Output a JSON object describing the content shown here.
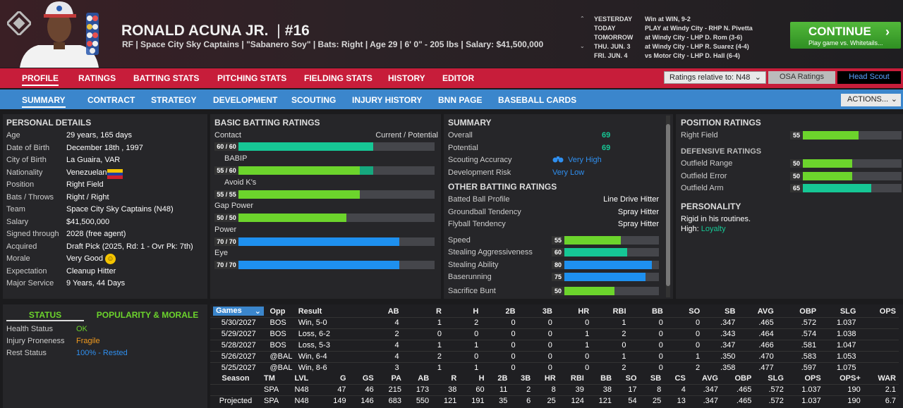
{
  "player": {
    "name": "RONALD ACUNA JR.",
    "sep": "|",
    "number": "#16",
    "info": "RF | Space City Sky Captains | \"Sabanero Soy\" | Bats: Right | Age 29 | 6' 0\" - 205 lbs | Salary: $41,500,000"
  },
  "schedule": [
    {
      "day": "YESTERDAY",
      "game": "Win at WIN, 9-2"
    },
    {
      "day": "TODAY",
      "game": "PLAY at Windy City - RHP N. Pivetta"
    },
    {
      "day": "TOMORROW",
      "game": "at Windy City - LHP D. Rom (3-6)"
    },
    {
      "day": "THU. JUN. 3",
      "game": "at Windy City - LHP R. Suarez (4-4)"
    },
    {
      "day": "FRI. JUN. 4",
      "game": "vs Motor City - LHP D. Hall (6-4)"
    }
  ],
  "continue": {
    "label": "CONTINUE",
    "sub": "Play game vs. Whitetails...",
    "chev": "›"
  },
  "nav1": [
    "PROFILE",
    "RATINGS",
    "BATTING STATS",
    "PITCHING STATS",
    "FIELDING STATS",
    "HISTORY",
    "EDITOR"
  ],
  "ratings_rel": "Ratings relative to: N48",
  "osa": "OSA Ratings",
  "head_scout": "Head Scout",
  "nav2": [
    "SUMMARY",
    "CONTRACT",
    "STRATEGY",
    "DEVELOPMENT",
    "SCOUTING",
    "INJURY HISTORY",
    "BNN PAGE",
    "BASEBALL CARDS"
  ],
  "actions": "ACTIONS...",
  "personal": {
    "title": "PERSONAL DETAILS",
    "rows": [
      {
        "label": "Age",
        "value": "29 years, 165 days"
      },
      {
        "label": "Date of Birth",
        "value": "December 18th , 1997"
      },
      {
        "label": "City of Birth",
        "value": "La Guaira, VAR"
      },
      {
        "label": "Nationality",
        "value": "Venezuelan"
      },
      {
        "label": "Position",
        "value": "Right Field"
      },
      {
        "label": "Bats / Throws",
        "value": "Right / Right"
      },
      {
        "label": "Team",
        "value": "Space City Sky Captains (N48)"
      },
      {
        "label": "Salary",
        "value": "$41,500,000"
      },
      {
        "label": "Signed through",
        "value": "2028 (free agent)"
      },
      {
        "label": "Acquired",
        "value": "Draft Pick (2025, Rd: 1 - Ovr Pk: 7th)"
      },
      {
        "label": "Morale",
        "value": "Very Good"
      },
      {
        "label": "Expectation",
        "value": "Cleanup Hitter"
      },
      {
        "label": "Major Service",
        "value": "9 Years, 44 Days"
      }
    ]
  },
  "batting": {
    "title": "BASIC BATTING RATINGS",
    "cp": "Current / Potential",
    "items": [
      {
        "label": "Contact",
        "text": "60 / 60",
        "cur": 60,
        "pot": 60,
        "color": "#16c795"
      },
      {
        "label": "BABIP",
        "text": "55 / 60",
        "cur": 55,
        "pot": 60,
        "color": "#6cd42c"
      },
      {
        "label": "Avoid K's",
        "text": "55 / 55",
        "cur": 55,
        "pot": 55,
        "color": "#6cd42c"
      },
      {
        "label": "Gap Power",
        "text": "50 / 50",
        "cur": 50,
        "pot": 50,
        "color": "#6cd42c"
      },
      {
        "label": "Power",
        "text": "70 / 70",
        "cur": 70,
        "pot": 70,
        "color": "#1e90ef"
      },
      {
        "label": "Eye",
        "text": "70 / 70",
        "cur": 70,
        "pot": 70,
        "color": "#1e90ef"
      }
    ]
  },
  "summary": {
    "title": "SUMMARY",
    "overall_l": "Overall",
    "overall": "69",
    "potential_l": "Potential",
    "potential": "69",
    "scout_l": "Scouting Accuracy",
    "scout": "Very High",
    "risk_l": "Development Risk",
    "risk": "Very Low",
    "other_title": "OTHER BATTING RATINGS",
    "other": [
      {
        "label": "Batted Ball Profile",
        "value": "Line Drive Hitter"
      },
      {
        "label": "Groundball Tendency",
        "value": "Spray Hitter"
      },
      {
        "label": "Flyball Tendency",
        "value": "Spray Hitter"
      }
    ],
    "run": [
      {
        "label": "Speed",
        "value": 55,
        "color": "#6cd42c"
      },
      {
        "label": "Stealing Aggressiveness",
        "value": 60,
        "color": "#16c795"
      },
      {
        "label": "Stealing Ability",
        "value": 80,
        "color": "#1e90ef"
      },
      {
        "label": "Baserunning",
        "value": 75,
        "color": "#1e90ef"
      },
      {
        "label": "Sacrifice Bunt",
        "value": 50,
        "color": "#6cd42c"
      }
    ]
  },
  "position": {
    "title": "POSITION RATINGS",
    "rf_l": "Right Field",
    "rf": 55,
    "def_title": "DEFENSIVE RATINGS",
    "def": [
      {
        "label": "Outfield Range",
        "value": 50,
        "color": "#6cd42c"
      },
      {
        "label": "Outfield Error",
        "value": 50,
        "color": "#6cd42c"
      },
      {
        "label": "Outfield Arm",
        "value": 65,
        "color": "#16c795"
      }
    ],
    "pers_title": "PERSONALITY",
    "pers1": "Rigid in his routines.",
    "pers2_l": "High:",
    "pers2": "Loyalty"
  },
  "status": {
    "tab1": "STATUS",
    "tab2": "POPULARITY & MORALE",
    "rows": [
      {
        "label": "Health Status",
        "value": "OK",
        "color": "#6cd42c"
      },
      {
        "label": "Injury Proneness",
        "value": "Fragile",
        "color": "#f29b1e"
      },
      {
        "label": "Rest Status",
        "value": "100% - Rested",
        "color": "#2f8fef"
      }
    ]
  },
  "games": {
    "sel": "Games",
    "headers": [
      "Opp",
      "Result",
      "AB",
      "R",
      "H",
      "2B",
      "3B",
      "HR",
      "RBI",
      "BB",
      "SO",
      "SB",
      "AVG",
      "OBP",
      "SLG",
      "OPS"
    ],
    "rows": [
      [
        "5/30/2027",
        "BOS",
        "Win, 5-0",
        "4",
        "1",
        "2",
        "0",
        "0",
        "0",
        "1",
        "0",
        "0",
        ".347",
        ".465",
        ".572",
        "1.037"
      ],
      [
        "5/29/2027",
        "BOS",
        "Loss, 6-2",
        "2",
        "0",
        "0",
        "0",
        "0",
        "1",
        "2",
        "0",
        "0",
        ".343",
        ".464",
        ".574",
        "1.038"
      ],
      [
        "5/28/2027",
        "BOS",
        "Loss, 5-3",
        "4",
        "1",
        "1",
        "0",
        "0",
        "1",
        "0",
        "0",
        "0",
        ".347",
        ".466",
        ".581",
        "1.047"
      ],
      [
        "5/26/2027",
        "@BAL",
        "Win, 6-4",
        "4",
        "2",
        "0",
        "0",
        "0",
        "0",
        "1",
        "0",
        "1",
        ".350",
        ".470",
        ".583",
        "1.053"
      ],
      [
        "5/25/2027",
        "@BAL",
        "Win, 8-6",
        "3",
        "1",
        "1",
        "0",
        "0",
        "0",
        "2",
        "0",
        "2",
        ".358",
        ".477",
        ".597",
        "1.075"
      ]
    ]
  },
  "season": {
    "headers": [
      "Season",
      "TM",
      "LVL",
      "G",
      "GS",
      "PA",
      "AB",
      "R",
      "H",
      "2B",
      "3B",
      "HR",
      "RBI",
      "BB",
      "SO",
      "SB",
      "CS",
      "AVG",
      "OBP",
      "SLG",
      "OPS",
      "OPS+",
      "WAR"
    ],
    "rows": [
      [
        "",
        "SPA",
        "N48",
        "47",
        "46",
        "215",
        "173",
        "38",
        "60",
        "11",
        "2",
        "8",
        "39",
        "38",
        "17",
        "8",
        "4",
        ".347",
        ".465",
        ".572",
        "1.037",
        "190",
        "2.1"
      ],
      [
        "Projected",
        "SPA",
        "N48",
        "149",
        "146",
        "683",
        "550",
        "121",
        "191",
        "35",
        "6",
        "25",
        "124",
        "121",
        "54",
        "25",
        "13",
        ".347",
        ".465",
        ".572",
        "1.037",
        "190",
        "6.7"
      ]
    ]
  }
}
